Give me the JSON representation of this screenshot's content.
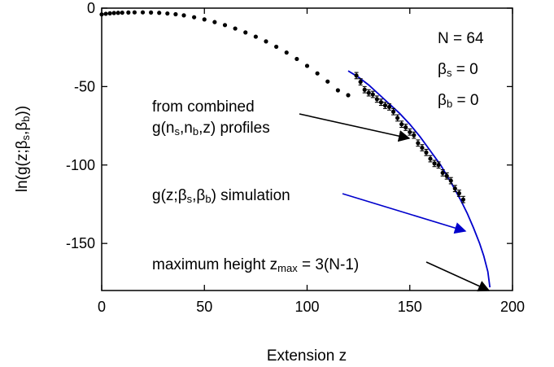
{
  "chart_data": {
    "type": "line",
    "xlabel": "Extension z",
    "ylabel": "ln(g(z;β_s,β_b))",
    "xlim": [
      0,
      200
    ],
    "ylim": [
      -180,
      0
    ],
    "x_ticks": [
      0,
      50,
      100,
      150,
      200
    ],
    "y_ticks": [
      0,
      -50,
      -100,
      -150
    ],
    "x_tick_labels": [
      "0",
      "50",
      "100",
      "150",
      "200"
    ],
    "y_tick_labels": [
      "0",
      "-50",
      "-100",
      "-150"
    ],
    "grid": false,
    "params": [
      {
        "text": "N = 64"
      },
      {
        "sym": "β",
        "sub": "s",
        "rest": " = 0"
      },
      {
        "sym": "β",
        "sub": "b",
        "rest": " = 0"
      }
    ],
    "annotations": {
      "combined_line1": "from combined",
      "combined_line2": "g(n_s,n_b,z) profiles",
      "simulation": "g(z;β_s,β_b) simulation",
      "max_height": "maximum height z_max = 3(N-1)"
    },
    "series": [
      {
        "name": "from combined g(n_s,n_b,z) profiles",
        "color": "#000000",
        "style": "points-with-errorbars",
        "x": [
          0,
          2,
          4,
          6,
          8,
          10,
          13,
          16,
          20,
          24,
          28,
          32,
          36,
          40,
          45,
          50,
          55,
          60,
          65,
          70,
          75,
          80,
          85,
          90,
          95,
          100,
          105,
          110,
          115,
          120,
          124,
          126,
          128,
          130,
          132,
          134,
          136,
          138,
          140,
          142,
          144,
          146,
          148,
          150,
          152,
          154,
          156,
          158,
          160,
          162,
          164,
          166,
          168,
          170,
          172,
          174,
          176
        ],
        "y": [
          -4,
          -3.6,
          -3.3,
          -3.1,
          -3.0,
          -2.9,
          -2.8,
          -2.7,
          -2.7,
          -2.8,
          -3,
          -3.4,
          -3.9,
          -4.6,
          -5.8,
          -7.2,
          -8.9,
          -10.8,
          -13,
          -15.5,
          -18.2,
          -21.2,
          -24.6,
          -28.3,
          -32.4,
          -36.8,
          -41.6,
          -46.8,
          -52.4,
          -55.5,
          -43,
          -47,
          -52,
          -54,
          -55,
          -58,
          -60,
          -62,
          -63,
          -66,
          -70,
          -74,
          -76,
          -79,
          -81,
          -86,
          -89,
          -92,
          -96,
          -99,
          -100,
          -105,
          -107,
          -110,
          -115,
          -118,
          -122
        ],
        "error": [
          0.3,
          0.3,
          0.3,
          0.3,
          0.3,
          0.3,
          0.3,
          0.3,
          0.3,
          0.3,
          0.3,
          0.3,
          0.3,
          0.3,
          0.3,
          0.3,
          0.3,
          0.3,
          0.3,
          0.3,
          0.3,
          0.3,
          0.3,
          0.3,
          0.3,
          0.3,
          0.3,
          0.3,
          0.3,
          0.3,
          2,
          2,
          2,
          2,
          2,
          2,
          2,
          2,
          2,
          2,
          2,
          2,
          2,
          2,
          2,
          2,
          2,
          2,
          2,
          2,
          2,
          2,
          2,
          2,
          2,
          2,
          2
        ]
      },
      {
        "name": "g(z;β_s,β_b) simulation",
        "color": "#0000cc",
        "style": "line",
        "x": [
          120,
          125,
          130,
          135,
          140,
          145,
          150,
          155,
          160,
          165,
          170,
          175,
          178,
          181,
          184,
          186,
          188,
          189
        ],
        "y": [
          -40,
          -44,
          -49,
          -55,
          -61,
          -67,
          -74,
          -82,
          -91,
          -100,
          -111,
          -123,
          -131,
          -140,
          -150,
          -158,
          -168,
          -178
        ]
      }
    ]
  }
}
